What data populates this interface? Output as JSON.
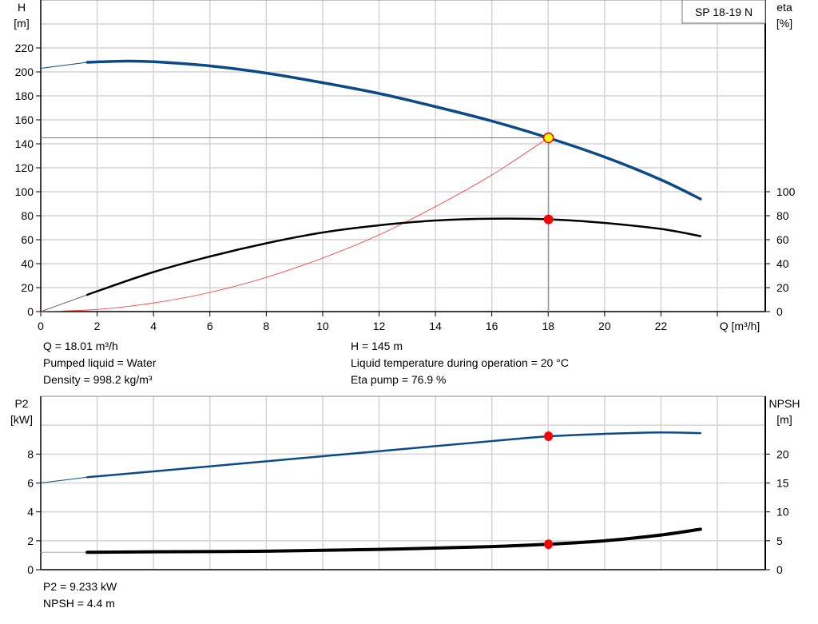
{
  "chart_data": [
    {
      "type": "line",
      "title": "SP 18-19 N",
      "xlabel": "Q [m³/h]",
      "ylabel": "H\n[m]",
      "y2label": "eta\n[%]",
      "xlim": [
        0,
        25.7
      ],
      "ylim": [
        0,
        260
      ],
      "y2lim": [
        0,
        260
      ],
      "grid": true,
      "x_ticks": [
        0,
        2,
        4,
        6,
        8,
        10,
        12,
        14,
        16,
        18,
        20,
        22
      ],
      "y_ticks": [
        0,
        20,
        40,
        60,
        80,
        100,
        120,
        140,
        160,
        180,
        200,
        220
      ],
      "y2_ticks": [
        0,
        20,
        40,
        60,
        80,
        100
      ],
      "colors": {
        "head": "#0b4a85",
        "eta": "#000000",
        "system": "#ff3030",
        "duty_marker": "#ff0000",
        "duty_fill": "#ffff00"
      },
      "series": [
        {
          "key": "head",
          "axis": "y",
          "x": [
            0,
            1.65,
            3,
            4,
            6,
            8,
            10,
            12,
            14,
            16,
            18,
            20,
            22,
            23.4
          ],
          "values": [
            203,
            208,
            209,
            208.5,
            205,
            199,
            191,
            182,
            171,
            159,
            145,
            129,
            110,
            94
          ]
        },
        {
          "key": "eta",
          "axis": "y2",
          "x": [
            0,
            1.65,
            2,
            4,
            6,
            8,
            10,
            12,
            14,
            16,
            18,
            20,
            22,
            23.4
          ],
          "values": [
            0,
            14,
            17,
            33,
            46,
            57,
            66,
            72,
            76,
            77.5,
            77,
            74,
            69,
            63
          ]
        },
        {
          "key": "system",
          "axis": "y",
          "x": [
            0,
            2,
            4,
            6,
            8,
            10,
            12,
            14,
            16,
            18
          ],
          "values": [
            0,
            1.8,
            7.2,
            16,
            28.6,
            44.7,
            64,
            87.6,
            114,
            145
          ]
        }
      ],
      "duty_point": {
        "Q": 18.01,
        "H": 145,
        "eta": 76.9
      }
    },
    {
      "type": "line",
      "ylabel": "P2\n[kW]",
      "y2label": "NPSH\n[m]",
      "xlim": [
        0,
        25.7
      ],
      "ylim": [
        0,
        12
      ],
      "y2lim": [
        0,
        30
      ],
      "grid": true,
      "y_ticks": [
        0,
        2,
        4,
        6,
        8
      ],
      "y2_ticks": [
        0,
        5,
        10,
        15,
        20
      ],
      "colors": {
        "p2": "#0b4a85",
        "npsh": "#000000",
        "duty_marker": "#ff0000"
      },
      "series": [
        {
          "key": "p2",
          "axis": "y",
          "x": [
            0,
            1.65,
            4,
            8,
            12,
            16,
            18,
            20,
            22,
            23.4
          ],
          "values": [
            6.0,
            6.4,
            6.8,
            7.5,
            8.2,
            8.9,
            9.23,
            9.4,
            9.5,
            9.45
          ]
        },
        {
          "key": "npsh",
          "axis": "y2",
          "x": [
            0,
            1.65,
            4,
            8,
            12,
            16,
            18,
            20,
            22,
            23.4
          ],
          "values": [
            3.0,
            3.0,
            3.1,
            3.2,
            3.5,
            4.0,
            4.4,
            5.0,
            6.0,
            7.0
          ]
        }
      ],
      "duty_point": {
        "Q": 18.01,
        "P2": 9.233,
        "NPSH": 4.4
      }
    }
  ],
  "info_top": {
    "q": "Q = 18.01 m³/h",
    "liquid": "Pumped liquid = Water",
    "density": "Density = 998.2 kg/m³",
    "h": "H = 145 m",
    "temp": "Liquid temperature during operation = 20 °C",
    "eta": "Eta pump = 76.9 %"
  },
  "info_bottom": {
    "p2": "P2 = 9.233 kW",
    "npsh": "NPSH = 4.4 m"
  }
}
